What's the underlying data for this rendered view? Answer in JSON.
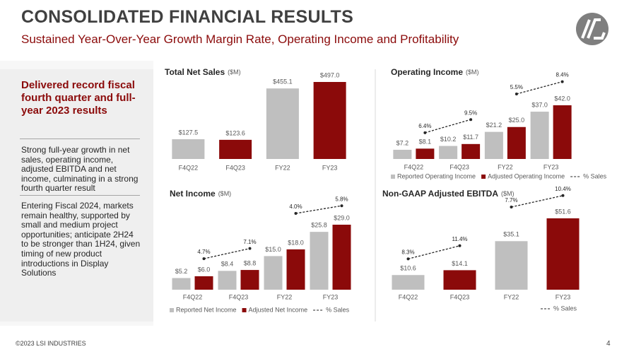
{
  "header": {
    "title": "CONSOLIDATED FINANCIAL RESULTS",
    "subtitle": "Sustained Year-Over-Year Growth Margin Rate, Operating Income and Profitability"
  },
  "sidebar": {
    "heading": "Delivered record fiscal fourth quarter and full-year 2023 results",
    "paragraphs": [
      "Strong full-year growth in net sales, operating income, adjusted EBITDA and net income, culminating in a strong fourth quarter result",
      "Entering Fiscal 2024, markets remain healthy, supported by small and medium project opportunities; anticipate 2H24 to be stronger than 1H24, given timing of new product introductions in Display Solutions"
    ]
  },
  "footer": {
    "copyright": "©2023 LSI INDUSTRIES",
    "page": "4"
  },
  "chart_data": [
    {
      "type": "bar",
      "title": "Total Net Sales",
      "unit": "($M)",
      "categories": [
        "F4Q22",
        "F4Q23",
        "FY22",
        "FY23"
      ],
      "values": [
        127.5,
        123.6,
        455.1,
        497.0
      ],
      "value_labels": [
        "$127.5",
        "$123.6",
        "$455.1",
        "$497.0"
      ],
      "colors": [
        "#bfbfbf",
        "#8b0a0a",
        "#bfbfbf",
        "#8b0a0a"
      ]
    },
    {
      "type": "bar",
      "title": "Operating Income",
      "unit": "($M)",
      "categories": [
        "F4Q22",
        "F4Q23",
        "FY22",
        "FY23"
      ],
      "series": [
        {
          "name": "Reported Operating Income",
          "color": "#bfbfbf",
          "values": [
            7.2,
            10.2,
            21.2,
            37.0
          ],
          "value_labels": [
            "$7.2",
            "$10.2",
            "$21.2",
            "$37.0"
          ]
        },
        {
          "name": "Adjusted Operating Income",
          "color": "#8b0a0a",
          "values": [
            8.1,
            11.7,
            25.0,
            42.0
          ],
          "value_labels": [
            "$8.1",
            "$11.7",
            "$25.0",
            "$42.0"
          ]
        },
        {
          "name": "% Sales",
          "type": "line",
          "color": "#262626",
          "values": [
            6.4,
            9.5,
            5.5,
            8.4
          ],
          "value_labels": [
            "6.4%",
            "9.5%",
            "5.5%",
            "8.4%"
          ]
        }
      ],
      "legend": "bottom"
    },
    {
      "type": "bar",
      "title": "Net Income",
      "unit": "($M)",
      "categories": [
        "F4Q22",
        "F4Q23",
        "FY22",
        "FY23"
      ],
      "series": [
        {
          "name": "Reported Net Income",
          "color": "#bfbfbf",
          "values": [
            5.2,
            8.4,
            15.0,
            25.8
          ],
          "value_labels": [
            "$5.2",
            "$8.4",
            "$15.0",
            "$25.8"
          ]
        },
        {
          "name": "Adjusted Net Income",
          "color": "#8b0a0a",
          "values": [
            6.0,
            8.8,
            18.0,
            29.0
          ],
          "value_labels": [
            "$6.0",
            "$8.8",
            "$18.0",
            "$29.0"
          ]
        },
        {
          "name": "% Sales",
          "type": "line",
          "color": "#262626",
          "values": [
            4.7,
            7.1,
            4.0,
            5.8
          ],
          "value_labels": [
            "4.7%",
            "7.1%",
            "4.0%",
            "5.8%"
          ]
        }
      ],
      "legend": "bottom"
    },
    {
      "type": "bar",
      "title": "Non-GAAP Adjusted EBITDA",
      "unit": "($M)",
      "categories": [
        "F4Q22",
        "F4Q23",
        "FY22",
        "FY23"
      ],
      "values": [
        10.6,
        14.1,
        35.1,
        51.6
      ],
      "value_labels": [
        "$10.6",
        "$14.1",
        "$35.1",
        "$51.6"
      ],
      "colors": [
        "#bfbfbf",
        "#8b0a0a",
        "#bfbfbf",
        "#8b0a0a"
      ],
      "series": [
        {
          "name": "% Sales",
          "type": "line",
          "color": "#262626",
          "values": [
            8.3,
            11.4,
            7.7,
            10.4
          ],
          "value_labels": [
            "8.3%",
            "11.4%",
            "7.7%",
            "10.4%"
          ]
        }
      ],
      "legend": "bottom"
    }
  ]
}
